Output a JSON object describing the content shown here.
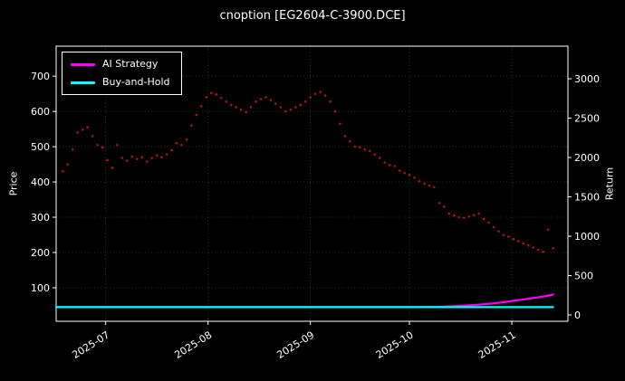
{
  "chart_data": {
    "type": "scatter+line",
    "title": "cnoption [EG2604-C-3900.DCE]",
    "ylabel_left": "Price",
    "ylabel_right": "Return",
    "legend_position": "upper left",
    "grid": true,
    "x_domain_days": [
      0,
      155
    ],
    "x_ticks": [
      {
        "day": 15,
        "label": "2025-07"
      },
      {
        "day": 46,
        "label": "2025-08"
      },
      {
        "day": 77,
        "label": "2025-09"
      },
      {
        "day": 107,
        "label": "2025-10"
      },
      {
        "day": 138,
        "label": "2025-11"
      }
    ],
    "price_axis": {
      "lim": [
        5,
        785
      ],
      "ticks": [
        100,
        200,
        300,
        400,
        500,
        600,
        700
      ]
    },
    "return_axis": {
      "lim": [
        -80,
        3414
      ],
      "ticks": [
        0,
        500,
        1000,
        1500,
        2000,
        2500,
        3000
      ]
    },
    "price_scatter": {
      "name": "option price",
      "color": "#b01515",
      "day_start": 2,
      "day_step": 1.5,
      "values": [
        430,
        450,
        492,
        540,
        548,
        555,
        530,
        505,
        498,
        462,
        440,
        505,
        468,
        460,
        472,
        465,
        470,
        458,
        468,
        475,
        470,
        478,
        490,
        510,
        505,
        520,
        560,
        590,
        615,
        640,
        652,
        648,
        638,
        628,
        618,
        612,
        605,
        598,
        612,
        628,
        635,
        640,
        632,
        622,
        612,
        600,
        605,
        612,
        618,
        628,
        640,
        650,
        655,
        645,
        628,
        600,
        565,
        530,
        515,
        500,
        498,
        492,
        488,
        478,
        468,
        455,
        448,
        445,
        432,
        425,
        420,
        412,
        402,
        395,
        390,
        385,
        340,
        330,
        310,
        305,
        300,
        298,
        302,
        306,
        310,
        295,
        285,
        272,
        260,
        250,
        245,
        238,
        232,
        226,
        220,
        214,
        208,
        202,
        265,
        212
      ]
    },
    "series": [
      {
        "name": "AI Strategy",
        "color": "#ff00ff",
        "axis": "return",
        "points": [
          [
            0,
            100
          ],
          [
            110,
            100
          ],
          [
            116,
            104
          ],
          [
            121,
            112
          ],
          [
            125,
            122
          ],
          [
            129,
            134
          ],
          [
            133,
            150
          ],
          [
            136,
            165
          ],
          [
            139,
            182
          ],
          [
            142,
            200
          ],
          [
            145,
            218
          ],
          [
            148,
            238
          ],
          [
            150.5,
            260
          ]
        ]
      },
      {
        "name": "Buy-and-Hold",
        "color": "#00ffff",
        "axis": "return",
        "points": [
          [
            0,
            100
          ],
          [
            150.5,
            100
          ]
        ]
      }
    ],
    "colors": {
      "background": "#000000",
      "text": "#ffffff",
      "grid": "#888888",
      "frame": "#ffffff"
    }
  }
}
